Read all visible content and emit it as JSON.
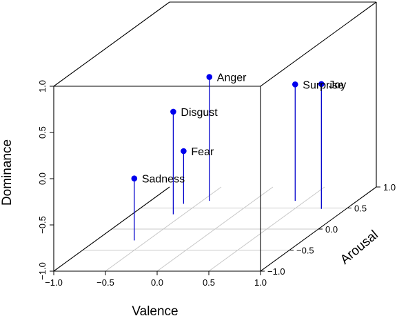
{
  "chart_data": {
    "type": "scatter3d",
    "title": "",
    "xlabel": "Valence",
    "ylabel": "Arousal",
    "zlabel": "Dominance",
    "xlim": [
      -1.0,
      1.0
    ],
    "ylim": [
      -1.0,
      1.0
    ],
    "zlim": [
      -1.0,
      1.0
    ],
    "x_ticks": [
      "−1.0",
      "−0.5",
      "0.0",
      "0.5",
      "1.0"
    ],
    "y_ticks": [
      "−1.0",
      "−0.5",
      "0.0",
      "0.5",
      "1.0"
    ],
    "z_ticks": [
      "−1.0",
      "−0.5",
      "0.0",
      "0.5",
      "1.0"
    ],
    "point_color": "#0000ee",
    "stem_color": "#0000cc",
    "points": [
      {
        "label": "Joy",
        "x": 0.76,
        "y": 0.48,
        "z": 0.35
      },
      {
        "label": "Surprise",
        "x": 0.4,
        "y": 0.67,
        "z": 0.26
      },
      {
        "label": "Anger",
        "x": -0.43,
        "y": 0.67,
        "z": 0.34
      },
      {
        "label": "Disgust",
        "x": -0.6,
        "y": 0.35,
        "z": 0.11
      },
      {
        "label": "Fear",
        "x": -0.64,
        "y": 0.6,
        "z": -0.43
      },
      {
        "label": "Sadness",
        "x": -0.63,
        "y": -0.27,
        "z": -0.33
      }
    ]
  }
}
